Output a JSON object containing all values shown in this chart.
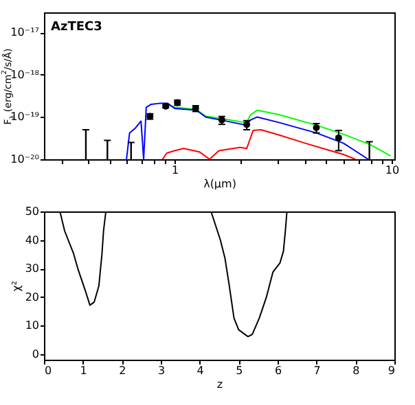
{
  "chart_data": [
    {
      "type": "line",
      "title": "AzTEC3",
      "xlabel": "λ(μm)",
      "ylabel": "F$_{λ}$ (erg/cm$^{2}$/s/Å)",
      "log": "xy",
      "grid": false,
      "xlim": [
        0.25,
        10.3
      ],
      "ylim": [
        1e-20,
        3e-17
      ],
      "xticks": [
        {
          "value": 0.3,
          "label": null
        },
        {
          "value": 0.4,
          "label": null
        },
        {
          "value": 0.5,
          "label": null
        },
        {
          "value": 0.6,
          "label": null
        },
        {
          "value": 0.7,
          "label": null
        },
        {
          "value": 0.8,
          "label": null
        },
        {
          "value": 0.9,
          "label": null
        },
        1,
        {
          "value": 2,
          "label": null
        },
        {
          "value": 3,
          "label": null
        },
        {
          "value": 4,
          "label": null
        },
        {
          "value": 5,
          "label": null
        },
        {
          "value": 6,
          "label": null
        },
        {
          "value": 7,
          "label": null
        },
        {
          "value": 8,
          "label": null
        },
        {
          "value": 9,
          "label": null
        },
        10
      ],
      "yticks": [
        {
          "value": 1e-20,
          "label": "10⁻²⁰"
        },
        {
          "value": 1e-19,
          "label": "10⁻¹⁹"
        },
        {
          "value": 1e-18,
          "label": "10⁻¹⁸"
        },
        {
          "value": 1e-17,
          "label": "10⁻¹⁷"
        }
      ],
      "series": [
        {
          "type": "line",
          "color": "#ff0000",
          "x": [
            0.88,
            0.92,
            1.0,
            1.1,
            1.3,
            1.45,
            1.6,
            2.0,
            2.15,
            2.3,
            2.5,
            3.0,
            4.0,
            5.0,
            6.0,
            6.8
          ],
          "values": [
            1e-20,
            1.4e-20,
            1.6e-20,
            1.8e-20,
            1.5e-20,
            1e-20,
            1.6e-20,
            1.9e-20,
            1.8e-20,
            4.8e-20,
            5e-20,
            3.8e-20,
            2.4e-20,
            1.7e-20,
            1.3e-20,
            1e-20
          ]
        },
        {
          "type": "line",
          "color": "#00ff00",
          "x": [
            0.9,
            1.0,
            1.26,
            1.39,
            1.65,
            2.15,
            2.23,
            2.4,
            3.0,
            4.5,
            6.0,
            8.0,
            9.9
          ],
          "values": [
            2.1e-19,
            1.7e-19,
            1.5e-19,
            1.05e-19,
            9.2e-20,
            7.3e-20,
            1.1e-19,
            1.45e-19,
            1.15e-19,
            6.4e-20,
            3.9e-20,
            2.2e-20,
            1.2e-20
          ]
        },
        {
          "type": "line",
          "color": "#0000ff",
          "x": [
            0.6,
            0.62,
            0.66,
            0.7,
            0.72,
            0.74,
            0.78,
            0.85,
            0.93,
            1.0,
            1.26,
            1.39,
            1.65,
            2.14,
            2.23,
            2.4,
            3.0,
            4.5,
            6.0,
            7.8
          ],
          "values": [
            1e-20,
            4.2e-20,
            5.5e-20,
            8e-20,
            1e-20,
            1.7e-19,
            2e-19,
            2.1e-19,
            2.1e-19,
            1.6e-19,
            1.45e-19,
            1e-19,
            8.4e-20,
            6.4e-20,
            8.4e-20,
            1e-19,
            7.5e-20,
            4.2e-20,
            2.4e-20,
            1e-20
          ]
        },
        {
          "type": "scatter",
          "color": "#000000",
          "marker": "circle",
          "x": [
            0.77,
            0.91,
            1.03,
            1.25,
            1.65,
            2.15,
            4.5,
            5.7
          ],
          "values": [
            1.04e-19,
            1.8e-19,
            2.2e-19,
            1.6e-19,
            8.5e-20,
            6.6e-20,
            5.6e-20,
            3.2e-20
          ],
          "errors": [
            1.5e-20,
            1.5e-20,
            3e-20,
            2.5e-20,
            1.8e-20,
            1.6e-20,
            1.4e-20,
            1.6e-20
          ]
        },
        {
          "type": "bar",
          "color": "#000000",
          "x": [
            0.39,
            0.49,
            0.63,
            7.9
          ],
          "values": [
            5e-20,
            2.8e-20,
            2.5e-20,
            2.6e-20
          ]
        }
      ]
    },
    {
      "type": "line",
      "xlabel": "z",
      "ylabel": "χ²",
      "grid": false,
      "xlim": [
        0,
        9
      ],
      "ylim": [
        -2,
        50
      ],
      "xticks": [
        0,
        1,
        2,
        3,
        4,
        5,
        6,
        7,
        8,
        9
      ],
      "yticks": [
        0,
        10,
        20,
        30,
        40,
        50
      ],
      "series": [
        {
          "type": "line",
          "color": "#000000",
          "x": [
            0.41,
            0.53,
            0.76,
            0.88,
            1.06,
            1.18,
            1.29,
            1.41,
            1.49,
            1.53,
            1.59
          ],
          "values": [
            50,
            43.2,
            35.2,
            29.5,
            22.3,
            17.1,
            18.2,
            23.9,
            35.2,
            43.2,
            50
          ]
        },
        {
          "type": "line",
          "color": "#000000",
          "x": [
            4.29,
            4.53,
            4.65,
            4.76,
            4.88,
            5.0,
            5.24,
            5.35,
            5.53,
            5.71,
            5.88,
            6.06,
            6.15,
            6.2,
            6.24
          ],
          "values": [
            50,
            40,
            33.5,
            23.9,
            12.6,
            8.5,
            6.1,
            6.9,
            12.6,
            19.8,
            28.7,
            31.9,
            36,
            43.2,
            50
          ]
        }
      ]
    }
  ]
}
